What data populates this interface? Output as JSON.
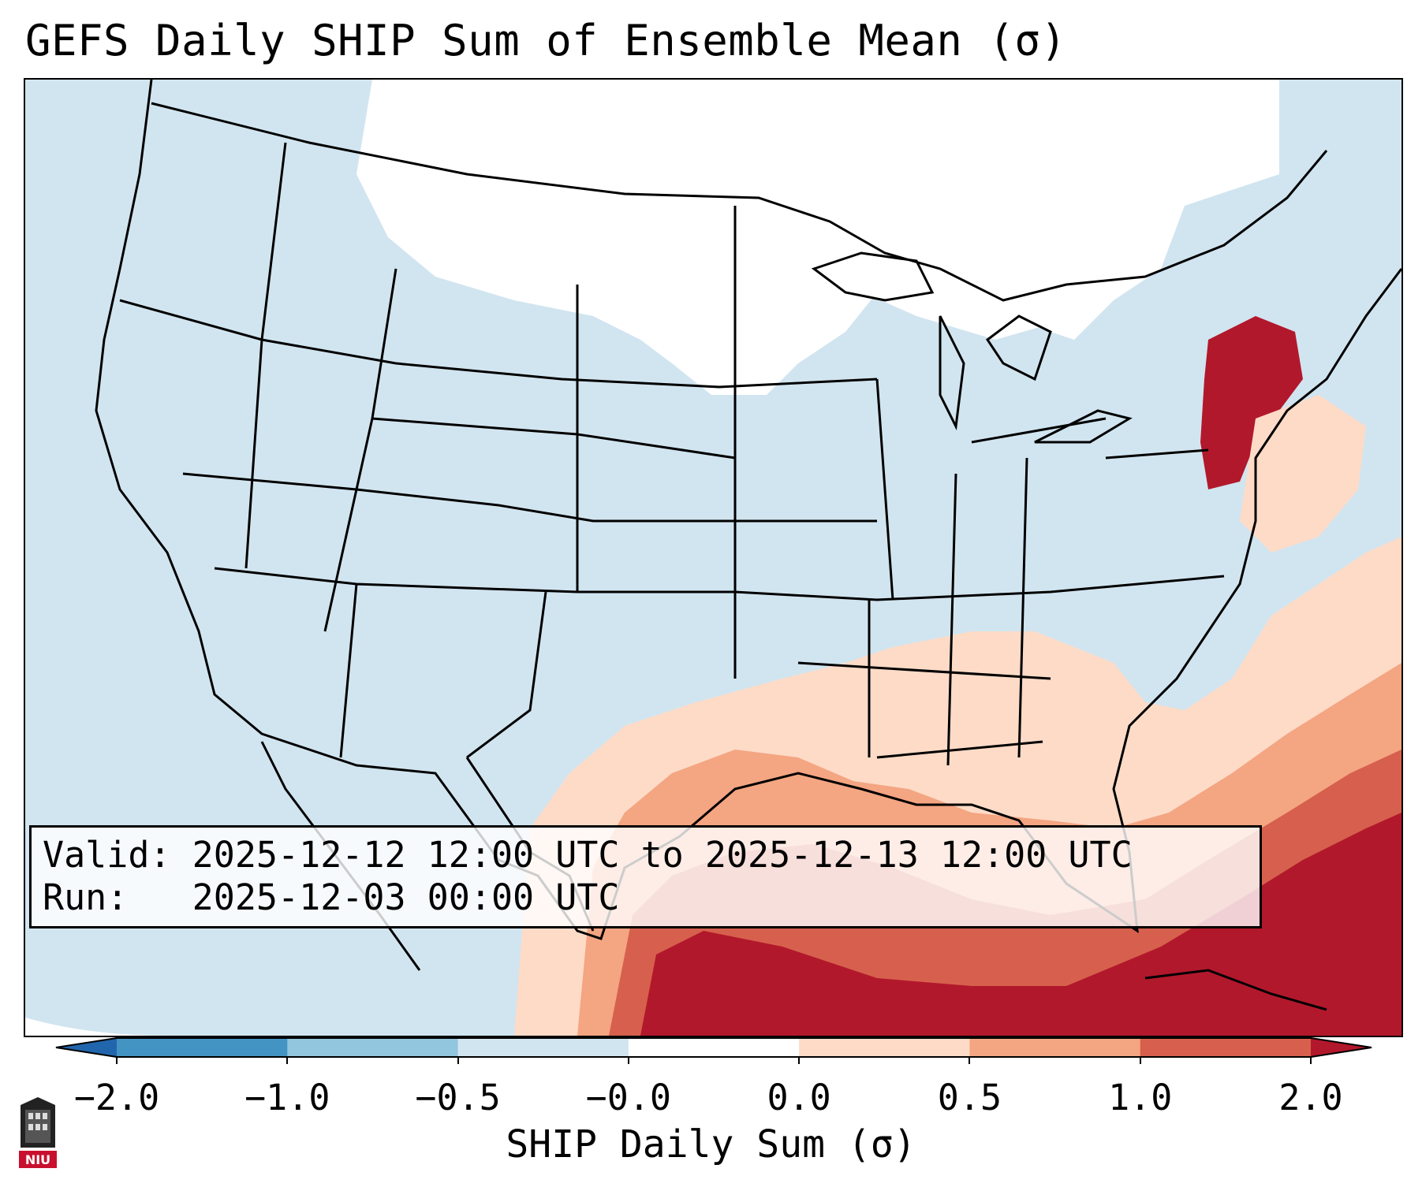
{
  "title": "GEFS Daily SHIP Sum of Ensemble Mean (σ)",
  "info": {
    "valid_line": "Valid: 2025-12-12 12:00 UTC to 2025-12-13 12:00 UTC",
    "run_line": "Run:   2025-12-03 00:00 UTC"
  },
  "colorbar": {
    "label": "SHIP Daily Sum (σ)",
    "ticks": [
      "−2.0",
      "−1.0",
      "−0.5",
      "−0.0",
      "0.0",
      "0.5",
      "1.0",
      "2.0"
    ],
    "colors": [
      "#2166ac",
      "#4393c3",
      "#92c5de",
      "#d1e5f0",
      "#ffffff",
      "#fddbc7",
      "#f4a582",
      "#d6604d",
      "#b2182b"
    ],
    "extend": "both"
  },
  "logo": {
    "text": "NIU",
    "icon": "university-logo-icon"
  },
  "map_fields": {
    "region": "Continental United States and Gulf of Mexico",
    "field": "SHIP daily sum (σ)",
    "high_values_region": "Gulf of Mexico, Southeast US, Atlantic offshore",
    "low_values_region": "Western and Central US"
  }
}
